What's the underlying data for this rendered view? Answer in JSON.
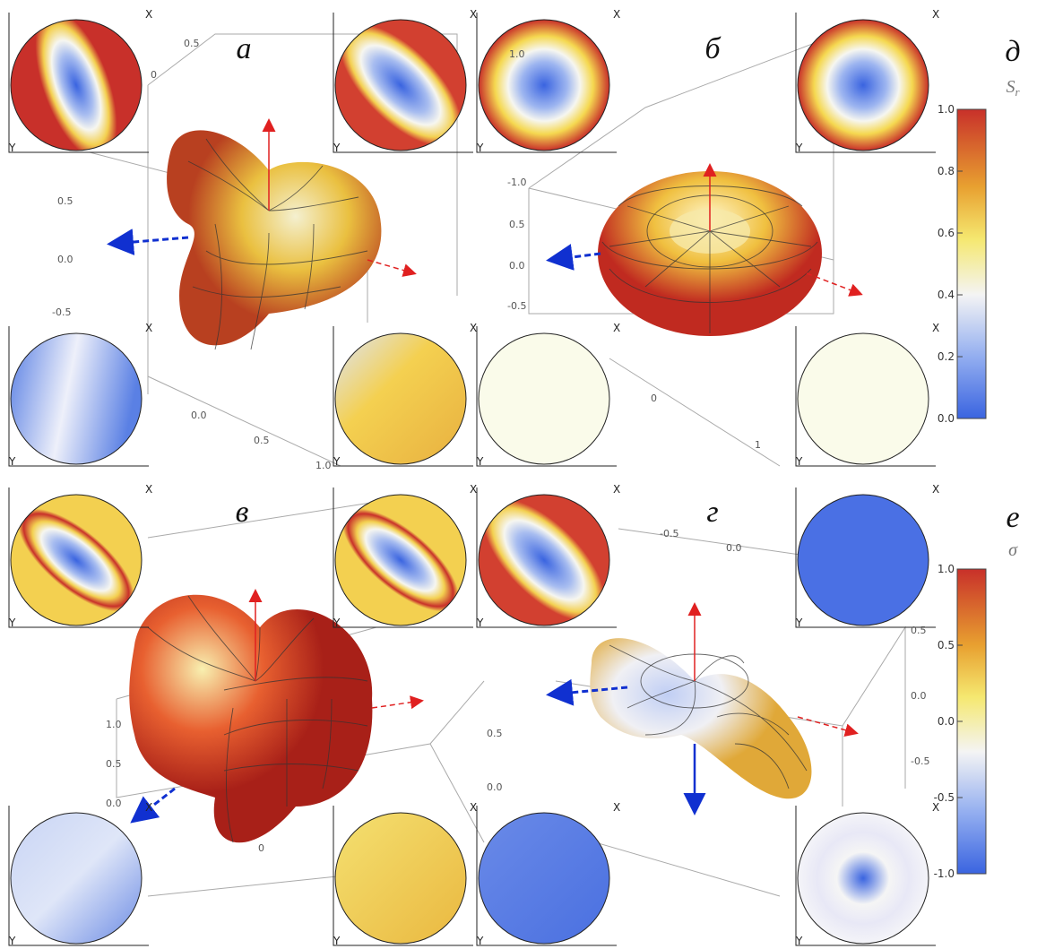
{
  "panel_labels": [
    "а",
    "б",
    "в",
    "г"
  ],
  "inset_axis_labels": {
    "x": "X",
    "y": "Y"
  },
  "colorbars": [
    {
      "label": "д",
      "symbol": "S",
      "subscript": "r",
      "ticks": [
        "1.0",
        "0.8",
        "0.6",
        "0.4",
        "0.2",
        "0.0"
      ]
    },
    {
      "label": "е",
      "symbol": "σ",
      "ticks": [
        "1.0",
        "0.5",
        "0.0",
        "-0.5",
        "-1.0"
      ]
    }
  ],
  "axis_numbers": {
    "a": [
      "0.5",
      "0",
      "0.5",
      "0.0",
      "-0.5",
      "0.0",
      "0.5",
      "1.0"
    ],
    "b": [
      "1.0",
      "-1.0",
      "0.5",
      "0.0",
      "-0.5",
      "0",
      "1"
    ],
    "c": [
      "1.0",
      "0.5",
      "0.0",
      "0.5",
      "0.0",
      "0"
    ],
    "d": [
      "-0.5",
      "0.0",
      "0.5",
      "0.0",
      "-0.5"
    ]
  }
}
